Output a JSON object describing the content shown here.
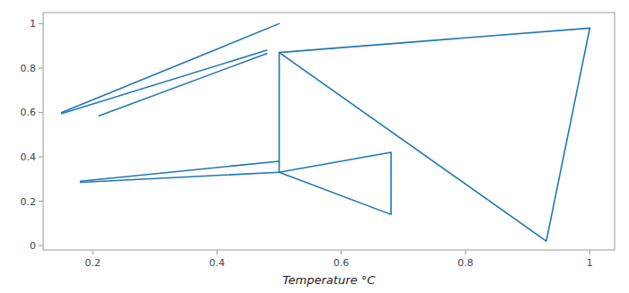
{
  "chart_data": {
    "type": "line",
    "xlabel": "Temperature °C",
    "color": "#1f77b4",
    "series": [
      {
        "x": [
          0.15,
          0.5
        ],
        "values": [
          0.6,
          1.0
        ]
      },
      {
        "x": [
          0.15,
          0.48
        ],
        "values": [
          0.595,
          0.88
        ]
      },
      {
        "x": [
          0.21,
          0.48
        ],
        "values": [
          0.585,
          0.865
        ]
      },
      {
        "x": [
          0.18,
          0.5
        ],
        "values": [
          0.29,
          0.38
        ]
      },
      {
        "x": [
          0.18,
          0.5
        ],
        "values": [
          0.285,
          0.33
        ]
      },
      {
        "x": [
          0.5,
          0.5
        ],
        "values": [
          0.87,
          0.33
        ]
      },
      {
        "x": [
          0.5,
          1.0,
          0.93,
          0.5
        ],
        "values": [
          0.87,
          0.98,
          0.02,
          0.87
        ]
      },
      {
        "x": [
          0.5,
          0.68,
          0.68,
          0.5
        ],
        "values": [
          0.33,
          0.42,
          0.14,
          0.33
        ]
      }
    ],
    "xlim": [
      0.12,
      1.04
    ],
    "ylim": [
      -0.02,
      1.05
    ],
    "xticks": [
      0.2,
      0.4,
      0.6,
      0.8,
      1
    ],
    "yticks": [
      0,
      0.2,
      0.4,
      0.6,
      0.8,
      1
    ],
    "grid": false
  }
}
